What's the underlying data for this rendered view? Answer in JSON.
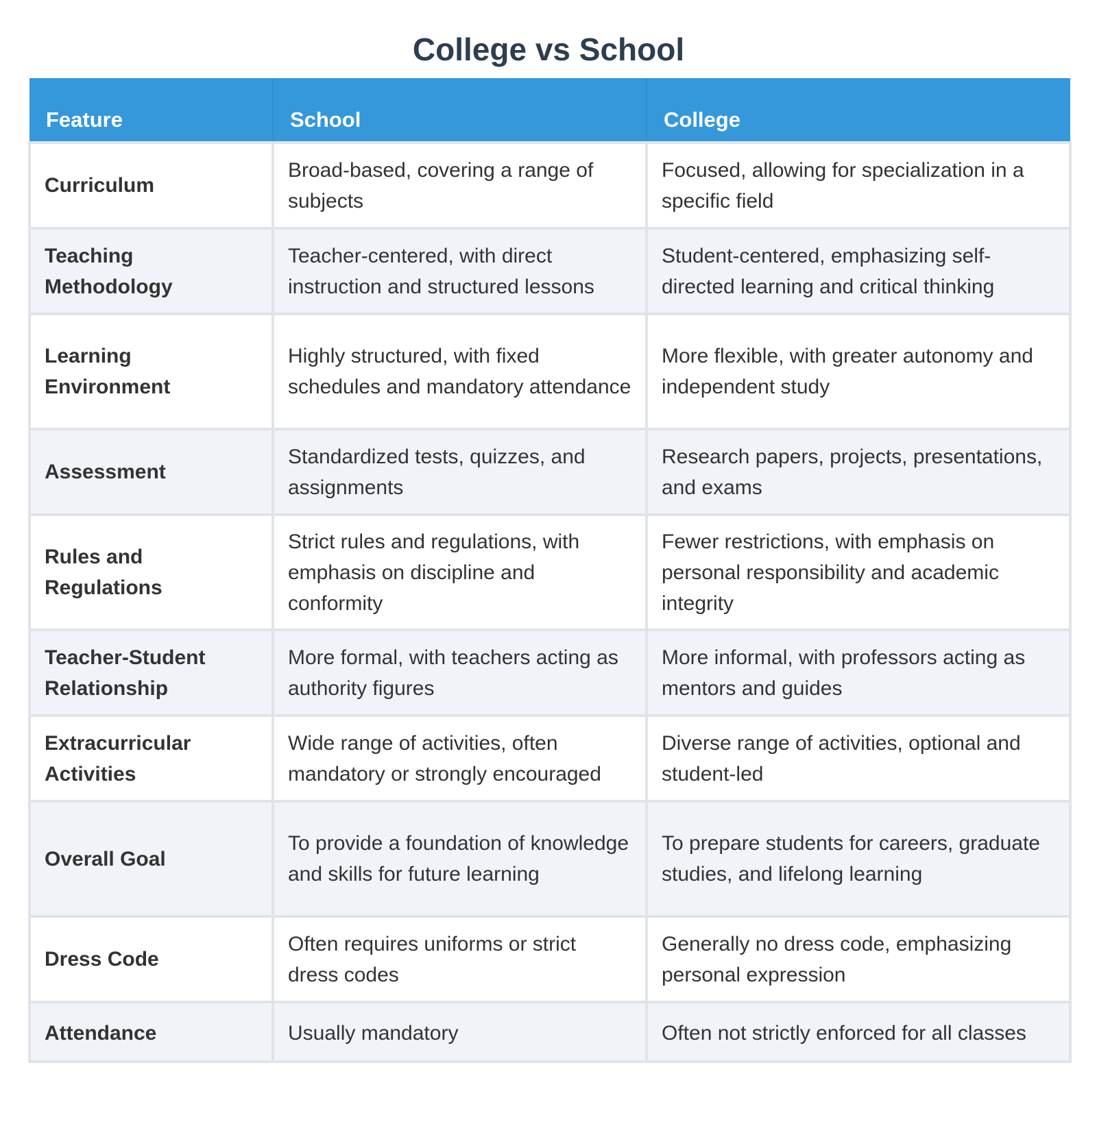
{
  "title": "College vs School",
  "colors": {
    "title": "#2c3e50",
    "header_background": "#3498db",
    "header_text": "#ffffff",
    "row_alt_background": "#f0f4f8",
    "border": "#e0e4e8",
    "text": "#333333"
  },
  "table": {
    "headers": [
      "Feature",
      "School",
      "College"
    ],
    "rows": [
      {
        "feature": "Curriculum",
        "school": "Broad-based, covering a range of subjects",
        "college": "Focused, allowing for specialization in a specific field"
      },
      {
        "feature": "Teaching Methodology",
        "school": "Teacher-centered, with direct instruction and structured lessons",
        "college": "Student-centered, emphasizing self-directed learning and critical thinking"
      },
      {
        "feature": "Learning Environment",
        "school": "Highly structured, with fixed schedules and mandatory attendance",
        "college": "More flexible, with greater autonomy and independent study"
      },
      {
        "feature": "Assessment",
        "school": "Standardized tests, quizzes, and assignments",
        "college": "Research papers, projects, presentations, and exams"
      },
      {
        "feature": "Rules and Regulations",
        "school": "Strict rules and regulations, with emphasis on discipline and conformity",
        "college": "Fewer restrictions, with emphasis on personal responsibility and academic integrity"
      },
      {
        "feature": "Teacher-Student Relationship",
        "school": "More formal, with teachers acting as authority figures",
        "college": "More informal, with professors acting as mentors and guides"
      },
      {
        "feature": "Extracurricular Activities",
        "school": "Wide range of activities, often mandatory or strongly encouraged",
        "college": "Diverse range of activities, optional and student-led"
      },
      {
        "feature": "Overall Goal",
        "school": "To provide a foundation of knowledge and skills for future learning",
        "college": "To prepare students for careers, graduate studies, and lifelong learning"
      },
      {
        "feature": "Dress Code",
        "school": "Often requires uniforms or strict dress codes",
        "college": "Generally no dress code, emphasizing personal expression"
      },
      {
        "feature": "Attendance",
        "school": "Usually mandatory",
        "college": "Often not strictly enforced for all classes"
      }
    ]
  }
}
